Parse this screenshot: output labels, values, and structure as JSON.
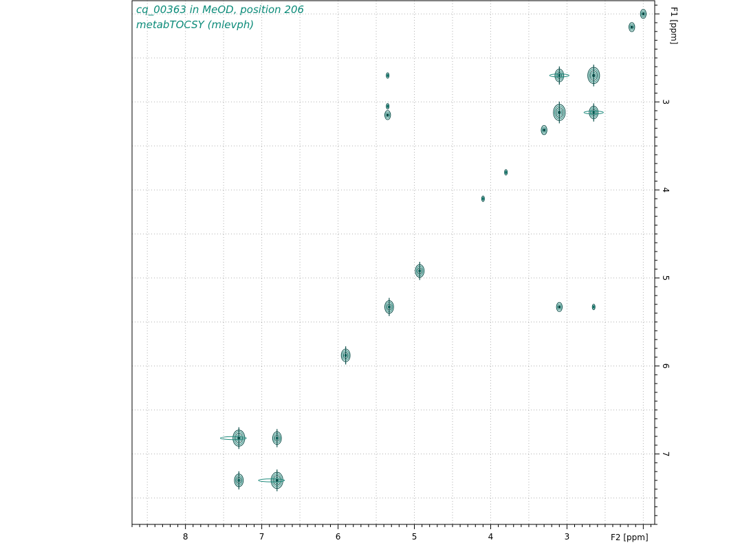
{
  "title_lines": [
    "cq_00363 in MeOD, position 206",
    "metabTOCSY (mlevph)"
  ],
  "colors": {
    "title": "#0a8a78",
    "contour_dark": "#0b4f4a",
    "contour_light": "#1f8a7c",
    "grid": "#b0b0b0",
    "axis": "#000000"
  },
  "chart_data": {
    "type": "contour-2d-nmr",
    "xlabel": "F2 [ppm]",
    "ylabel": "F1 [ppm]",
    "xlim": [
      8.7,
      1.85
    ],
    "ylim": [
      1.85,
      7.8
    ],
    "x_ticks": [
      8,
      7,
      6,
      5,
      4,
      3
    ],
    "y_ticks": [
      3,
      4,
      5,
      6,
      7
    ],
    "grid": true,
    "peaks": [
      {
        "x": 2.0,
        "y": 2.0,
        "kind": "diagonal",
        "size": 1
      },
      {
        "x": 2.15,
        "y": 2.15,
        "kind": "diagonal",
        "size": 1
      },
      {
        "x": 3.1,
        "y": 2.7,
        "kind": "cross",
        "size": 2
      },
      {
        "x": 2.65,
        "y": 2.7,
        "kind": "diagonal",
        "size": 3
      },
      {
        "x": 3.1,
        "y": 3.12,
        "kind": "diagonal",
        "size": 3
      },
      {
        "x": 2.65,
        "y": 3.12,
        "kind": "cross",
        "size": 2
      },
      {
        "x": 3.3,
        "y": 3.32,
        "kind": "diagonal",
        "size": 1
      },
      {
        "x": 5.35,
        "y": 2.7,
        "kind": "cross",
        "size": 0
      },
      {
        "x": 5.35,
        "y": 3.05,
        "kind": "cross",
        "size": 0
      },
      {
        "x": 5.35,
        "y": 3.15,
        "kind": "cross",
        "size": 1
      },
      {
        "x": 3.8,
        "y": 3.8,
        "kind": "diagonal",
        "size": 0
      },
      {
        "x": 4.1,
        "y": 4.1,
        "kind": "diagonal",
        "size": 0
      },
      {
        "x": 4.93,
        "y": 4.92,
        "kind": "diagonal",
        "size": 2
      },
      {
        "x": 5.33,
        "y": 5.33,
        "kind": "diagonal",
        "size": 2
      },
      {
        "x": 3.1,
        "y": 5.33,
        "kind": "cross",
        "size": 1
      },
      {
        "x": 2.65,
        "y": 5.33,
        "kind": "cross",
        "size": 0
      },
      {
        "x": 5.9,
        "y": 5.88,
        "kind": "diagonal",
        "size": 2
      },
      {
        "x": 7.3,
        "y": 6.82,
        "kind": "cross",
        "size": 3
      },
      {
        "x": 6.8,
        "y": 6.82,
        "kind": "diagonal",
        "size": 2
      },
      {
        "x": 7.3,
        "y": 7.3,
        "kind": "diagonal",
        "size": 2
      },
      {
        "x": 6.8,
        "y": 7.3,
        "kind": "cross",
        "size": 3
      }
    ]
  }
}
